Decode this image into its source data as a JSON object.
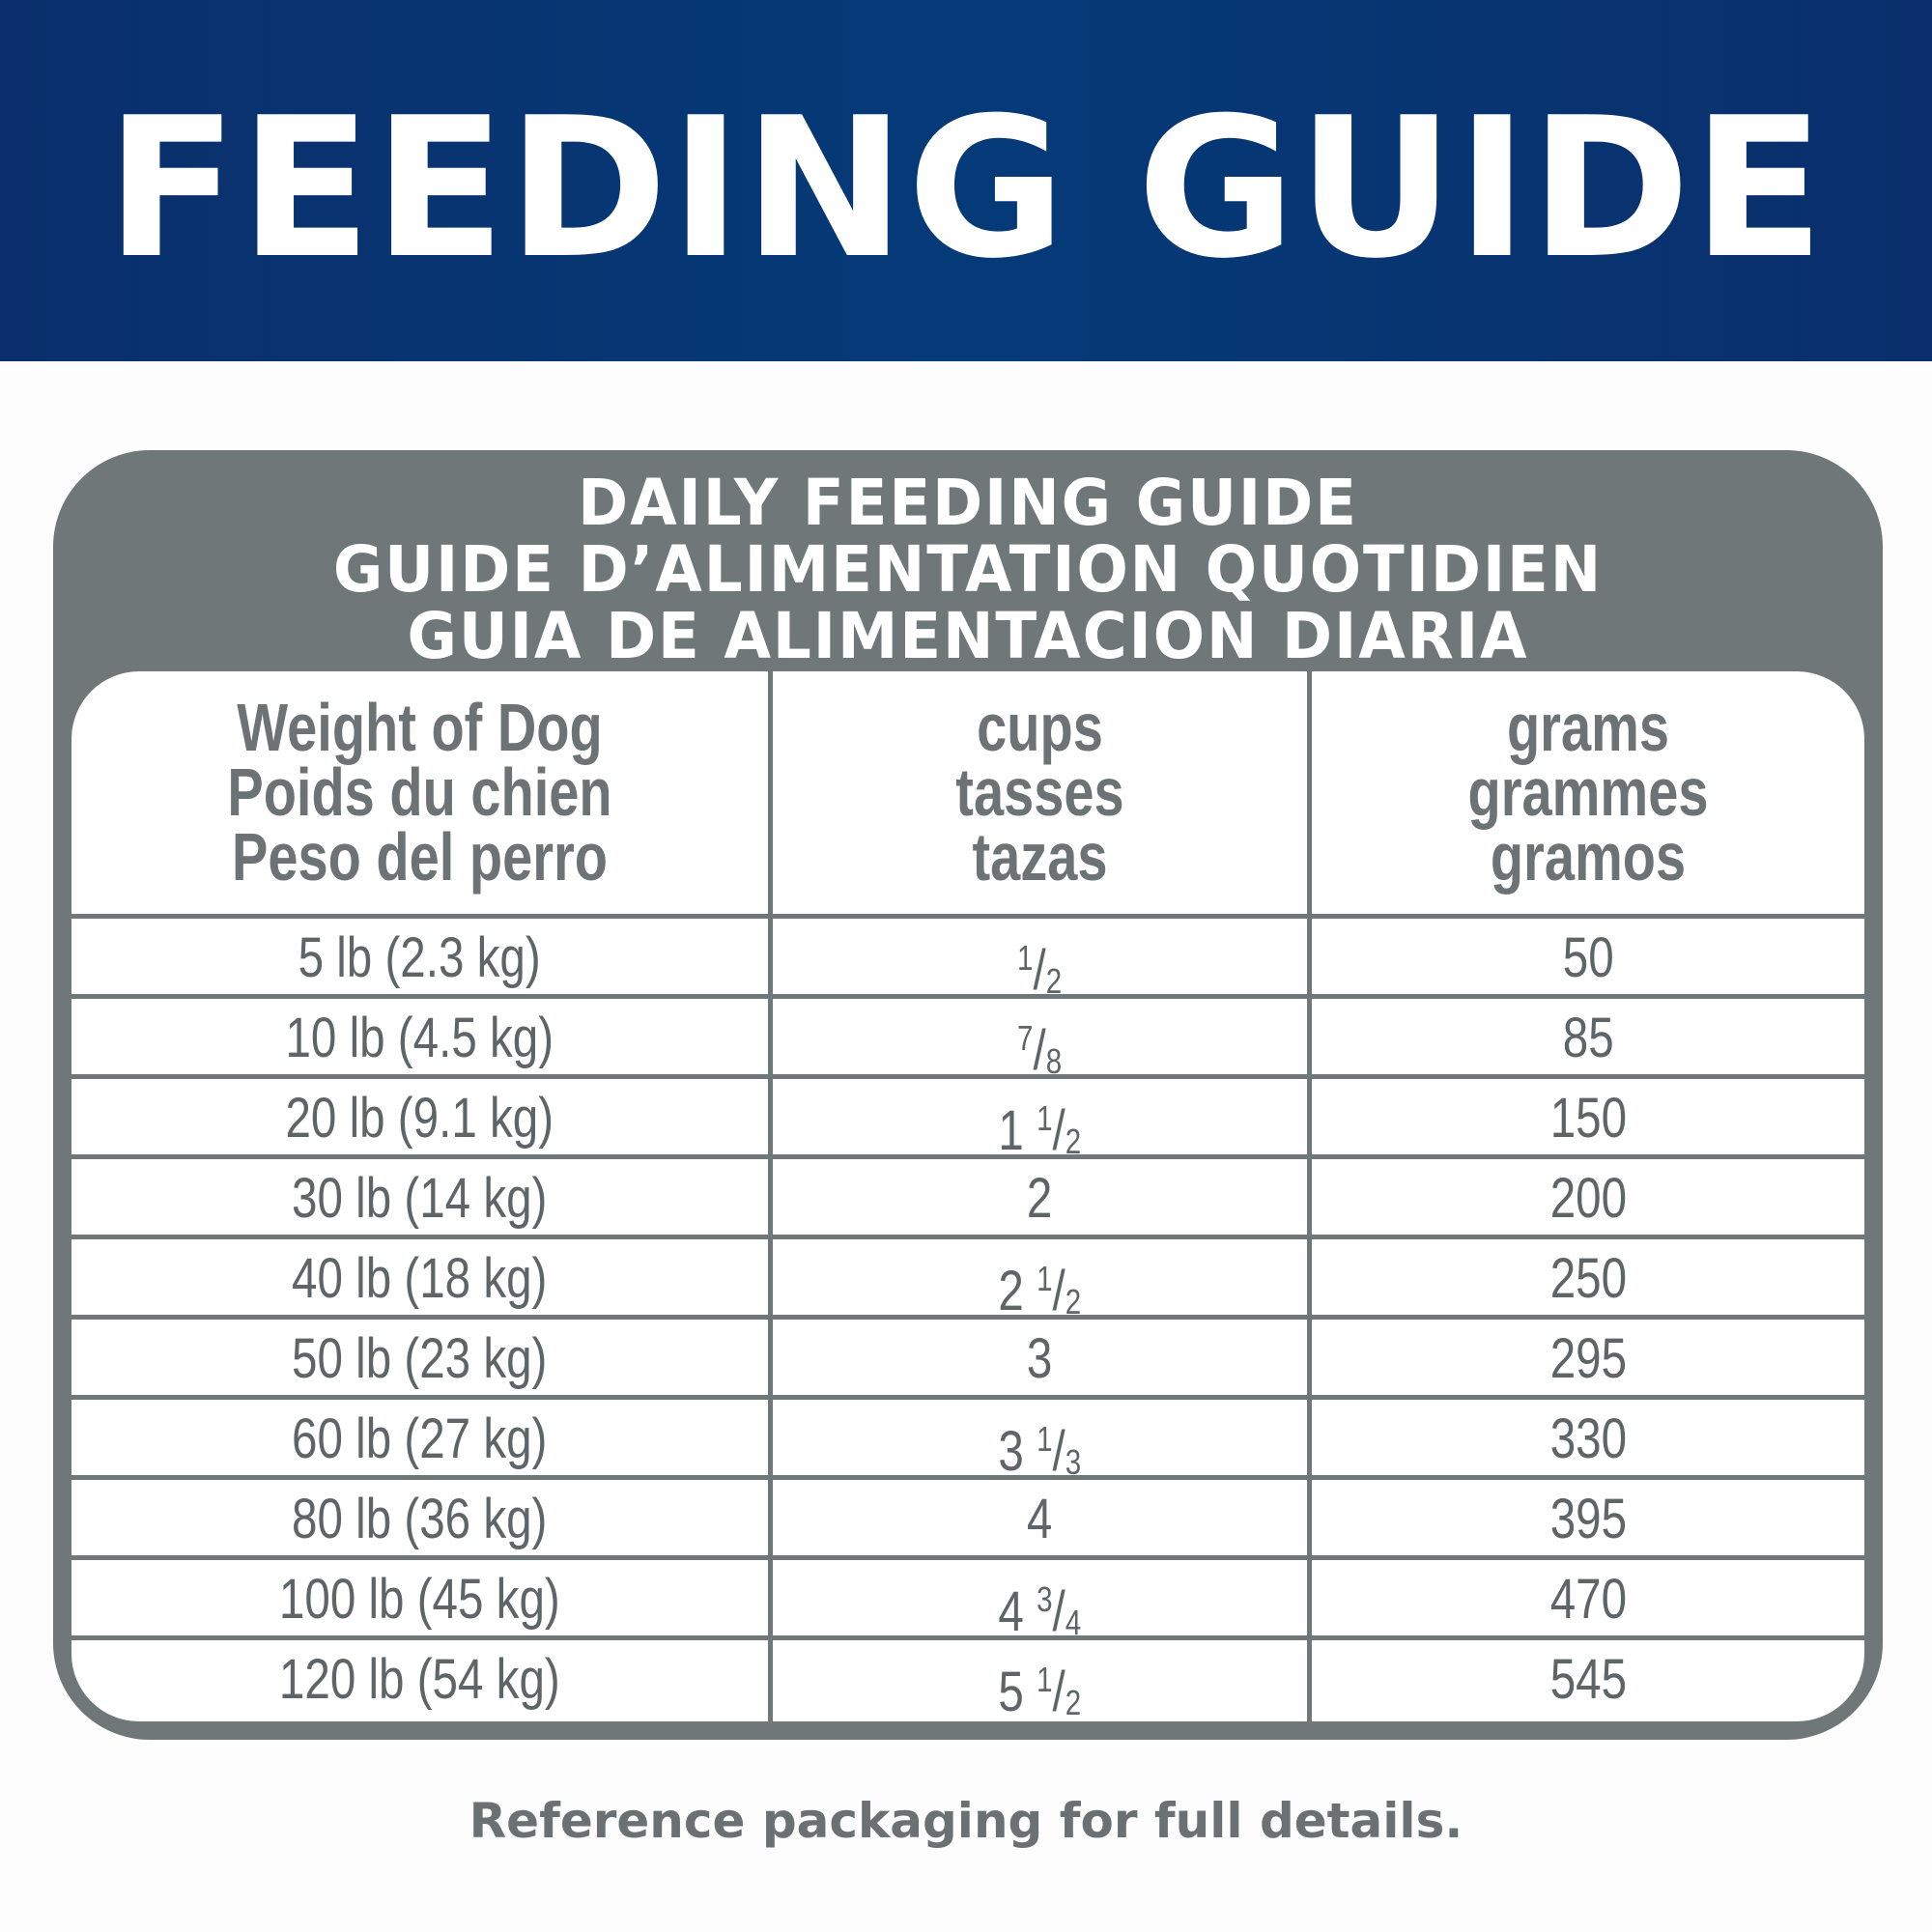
{
  "banner": {
    "title": "FEEDING GUIDE"
  },
  "guide": {
    "titles": [
      "DAILY FEEDING GUIDE",
      "GUIDE D’ALIMENTATION QUOTIDIEN",
      "GUIA DE ALIMENTACION DIARIA"
    ],
    "columns": [
      {
        "lines": [
          "Weight of Dog",
          "Poids du chien",
          "Peso del perro"
        ]
      },
      {
        "lines": [
          "cups",
          "tasses",
          "tazas"
        ]
      },
      {
        "lines": [
          "grams",
          "grammes",
          "gramos"
        ]
      }
    ],
    "rows": [
      {
        "weight": "5 lb (2.3 kg)",
        "cups": {
          "whole": "",
          "num": "1",
          "den": "2"
        },
        "grams": "50"
      },
      {
        "weight": "10 lb (4.5 kg)",
        "cups": {
          "whole": "",
          "num": "7",
          "den": "8"
        },
        "grams": "85"
      },
      {
        "weight": "20 lb (9.1 kg)",
        "cups": {
          "whole": "1",
          "num": "1",
          "den": "2"
        },
        "grams": "150"
      },
      {
        "weight": "30 lb (14 kg)",
        "cups": {
          "whole": "2",
          "num": "",
          "den": ""
        },
        "grams": "200"
      },
      {
        "weight": "40 lb (18 kg)",
        "cups": {
          "whole": "2",
          "num": "1",
          "den": "2"
        },
        "grams": "250"
      },
      {
        "weight": "50 lb (23 kg)",
        "cups": {
          "whole": "3",
          "num": "",
          "den": ""
        },
        "grams": "295"
      },
      {
        "weight": "60 lb (27 kg)",
        "cups": {
          "whole": "3",
          "num": "1",
          "den": "3"
        },
        "grams": "330"
      },
      {
        "weight": "80 lb (36 kg)",
        "cups": {
          "whole": "4",
          "num": "",
          "den": ""
        },
        "grams": "395"
      },
      {
        "weight": "100 lb (45 kg)",
        "cups": {
          "whole": "4",
          "num": "3",
          "den": "4"
        },
        "grams": "470"
      },
      {
        "weight": "120 lb (54 kg)",
        "cups": {
          "whole": "5",
          "num": "1",
          "den": "2"
        },
        "grams": "545"
      }
    ]
  },
  "footer": {
    "note": "Reference packaging for full details."
  },
  "colors": {
    "banner": "#053a78",
    "frame": "#707779",
    "text": "#5f6466"
  }
}
